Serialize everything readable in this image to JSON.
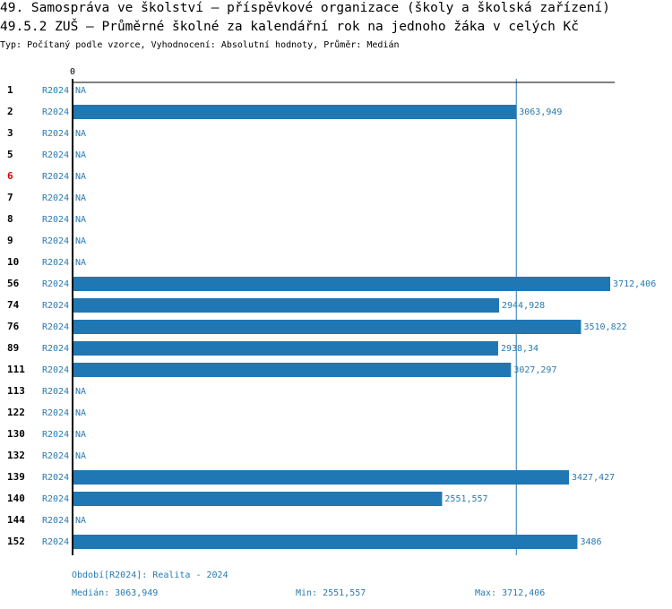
{
  "chart_data": {
    "type": "bar",
    "orientation": "horizontal",
    "title": "49. Samospráva ve školství – příspěvkové organizace (školy a školská zařízení)",
    "subtitle": "49.5.2 ZUŠ – Průměrné školné za kalendářní rok na jednoho žáka v celých Kč",
    "note": "Typ: Počítaný podle vzorce, Vyhodnocení: Absolutní hodnoty, Průměr: Medián",
    "period": "R2024",
    "categories": [
      "1",
      "2",
      "3",
      "5",
      "6",
      "7",
      "8",
      "9",
      "10",
      "56",
      "74",
      "76",
      "89",
      "111",
      "113",
      "122",
      "130",
      "132",
      "139",
      "140",
      "144",
      "152"
    ],
    "values": [
      null,
      3063.949,
      null,
      null,
      null,
      null,
      null,
      null,
      null,
      3712.406,
      2944.928,
      3510.822,
      2938.34,
      3027.297,
      null,
      null,
      null,
      null,
      3427.427,
      2551.557,
      null,
      3486
    ],
    "value_labels": [
      "NA",
      "3063,949",
      "NA",
      "NA",
      "NA",
      "NA",
      "NA",
      "NA",
      "NA",
      "3712,406",
      "2944,928",
      "3510,822",
      "2938,34",
      "3027,297",
      "NA",
      "NA",
      "NA",
      "NA",
      "3427,427",
      "2551,557",
      "NA",
      "3486"
    ],
    "color": "#1f77b4",
    "highlight": {
      "index": 4,
      "color": "#dd0000"
    },
    "median": 3063.949,
    "xlim": [
      0,
      3743
    ],
    "xticks": [
      0
    ],
    "footer": {
      "period_note": "Období[R2024]: Realita - 2024",
      "median": "Medián: 3063,949",
      "min": "Min: 2551,557",
      "max": "Max: 3712,406"
    }
  }
}
